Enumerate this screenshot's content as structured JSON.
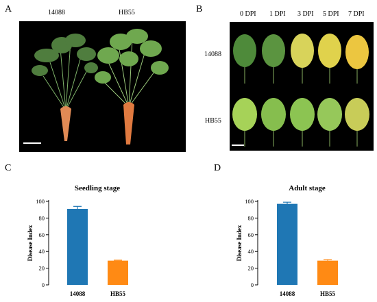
{
  "figure": {
    "panels": {
      "A": {
        "letter": "A",
        "labels": [
          "14088",
          "HB55"
        ]
      },
      "B": {
        "letter": "B",
        "columns": [
          "0 DPI",
          "1 DPI",
          "3 DPI",
          "5 DPI",
          "7 DPI"
        ],
        "rows": [
          "14088",
          "HB55"
        ]
      },
      "C": {
        "letter": "C"
      },
      "D": {
        "letter": "D"
      }
    },
    "colors": {
      "bar_14088": "#1f77b4",
      "bar_HB55": "#ff8a14",
      "photo_bg": "#000000"
    }
  },
  "chart_data": [
    {
      "type": "bar",
      "title": "Seedling stage",
      "ylabel": "Disease Index",
      "categories": [
        "14088",
        "HB55"
      ],
      "values": [
        91,
        29
      ],
      "errors": [
        3,
        0.6
      ],
      "ylim": [
        0,
        100
      ],
      "yticks": [
        0,
        20,
        40,
        60,
        80,
        100
      ]
    },
    {
      "type": "bar",
      "title": "Adult stage",
      "ylabel": "Disease Index",
      "categories": [
        "14088",
        "HB55"
      ],
      "values": [
        97,
        29
      ],
      "errors": [
        2,
        1.2
      ],
      "ylim": [
        0,
        100
      ],
      "yticks": [
        0,
        20,
        40,
        60,
        80,
        100
      ]
    }
  ]
}
